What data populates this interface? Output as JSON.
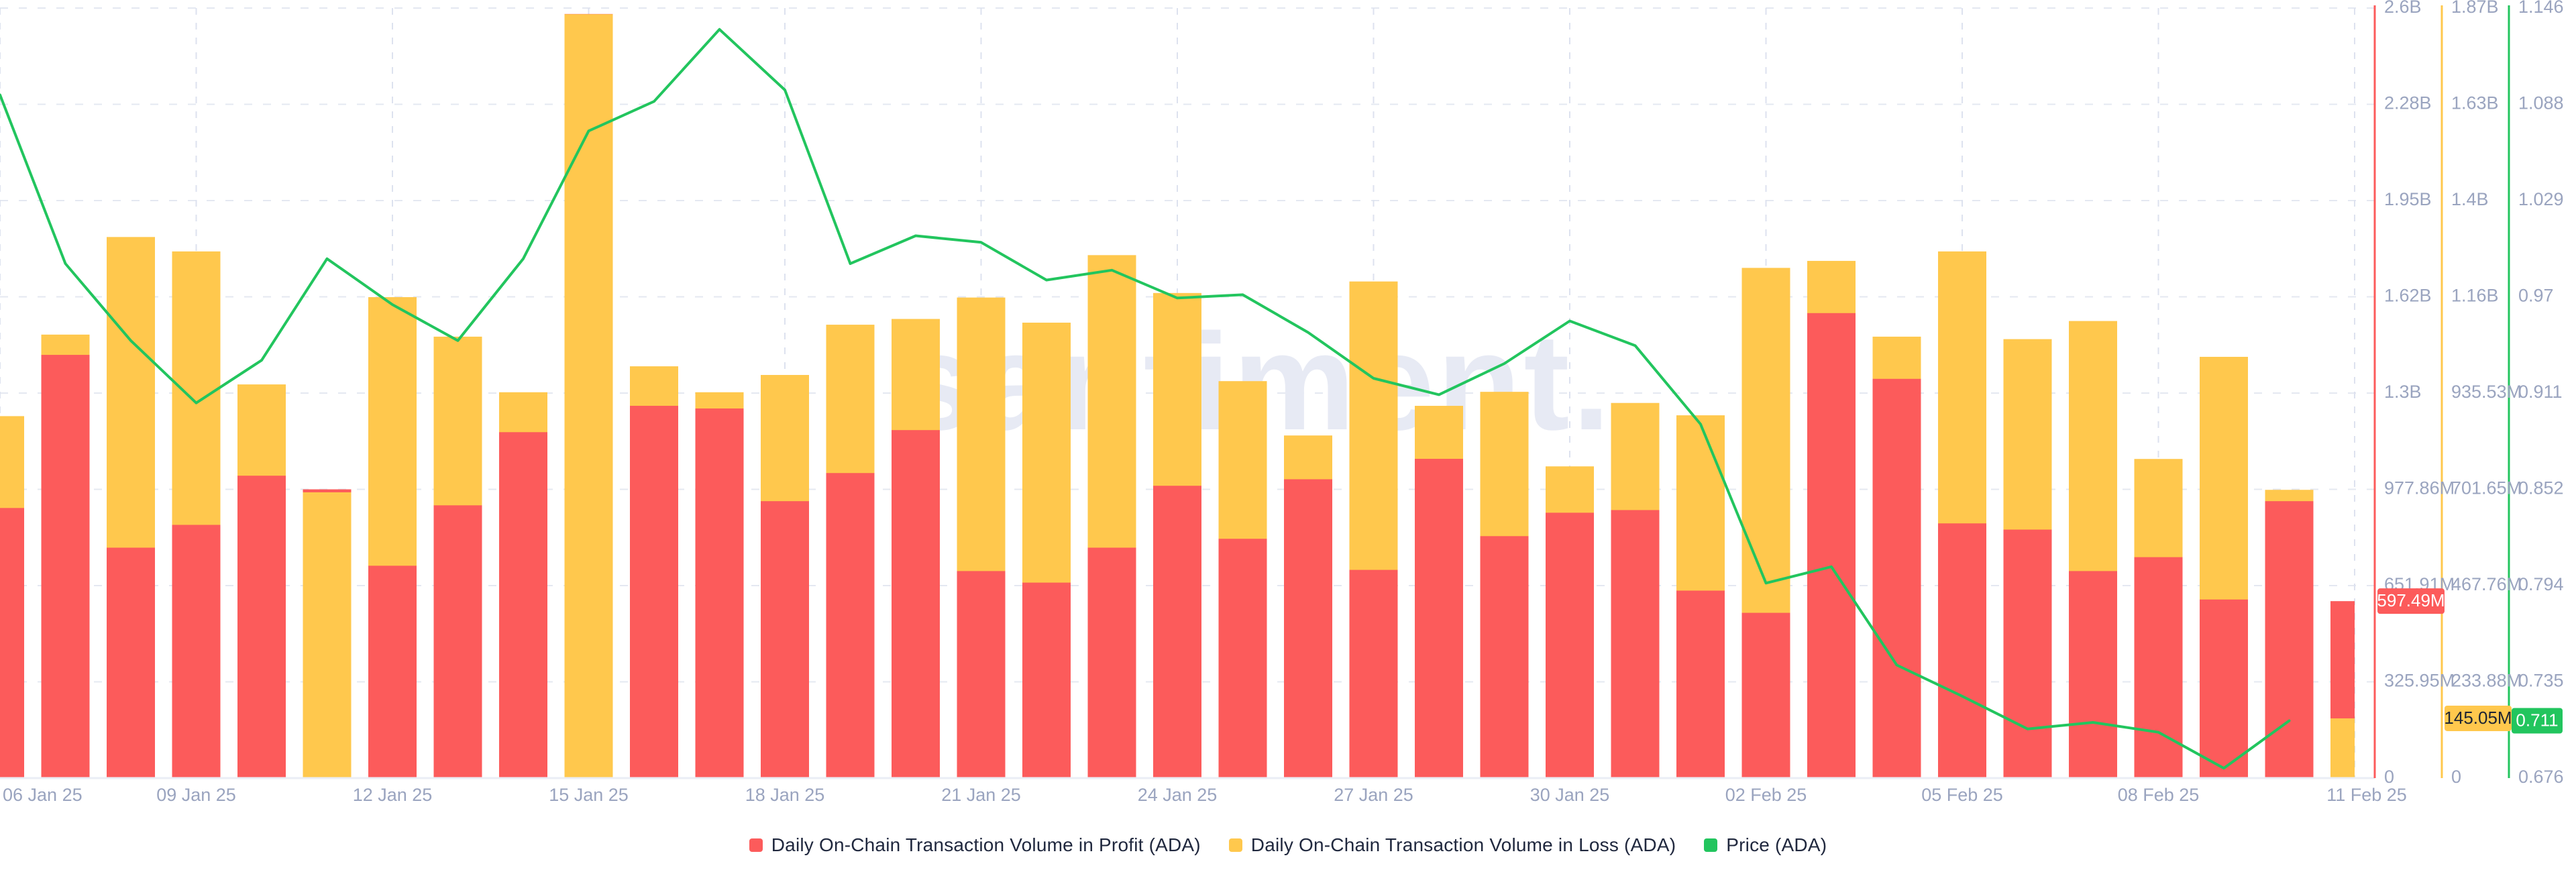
{
  "watermark": "santiment.",
  "legend": {
    "items": [
      {
        "label": "Daily On-Chain Transaction Volume in Profit (ADA)",
        "color": "#FC5B5B"
      },
      {
        "label": "Daily On-Chain Transaction Volume in Loss (ADA)",
        "color": "#FFC84D"
      },
      {
        "label": "Price (ADA)",
        "color": "#22C55E"
      }
    ]
  },
  "badges": {
    "profit_last": "597.49M",
    "loss_last": "145.05M",
    "price_last": "0.711"
  },
  "colors": {
    "profit": "#FC5B5B",
    "loss": "#FFC84D",
    "price": "#22C55E",
    "grid": "#E4E8F1",
    "vgrid": "#DDE2EF",
    "axis_line": "#EAEDF5",
    "axis_text": "#9AA4BF",
    "legend_text": "#20283E",
    "watermark": "#E7EAF4",
    "badge_dark_text": "#1D2433"
  },
  "chart_data": {
    "type": "mixed",
    "subtypes": {
      "profit": "bar-overlay-from-zero",
      "loss": "bar-overlay-from-zero",
      "price": "line"
    },
    "note_render_rule": "Both bars start at zero on separate axes; the bar with the smaller pixel height is drawn in front.",
    "categories": [
      "06 Jan 25",
      "07 Jan 25",
      "08 Jan 25",
      "09 Jan 25",
      "10 Jan 25",
      "11 Jan 25",
      "12 Jan 25",
      "13 Jan 25",
      "14 Jan 25",
      "15 Jan 25",
      "16 Jan 25",
      "17 Jan 25",
      "18 Jan 25",
      "19 Jan 25",
      "20 Jan 25",
      "21 Jan 25",
      "22 Jan 25",
      "23 Jan 25",
      "24 Jan 25",
      "25 Jan 25",
      "26 Jan 25",
      "27 Jan 25",
      "28 Jan 25",
      "29 Jan 25",
      "30 Jan 25",
      "31 Jan 25",
      "01 Feb 25",
      "02 Feb 25",
      "03 Feb 25",
      "04 Feb 25",
      "05 Feb 25",
      "06 Feb 25",
      "07 Feb 25",
      "08 Feb 25",
      "09 Feb 25",
      "10 Feb 25",
      "11 Feb 25"
    ],
    "series": [
      {
        "name": "Daily On-Chain Transaction Volume in Profit (ADA)",
        "unit": "M ADA",
        "axis": "red",
        "values": [
          912,
          1429,
          778,
          855,
          1021,
          975,
          717,
          921,
          1168,
          2580,
          1257,
          1248,
          935,
          1030,
          1175,
          699,
          660,
          778,
          987,
          808,
          1009,
          703,
          1078,
          817,
          896,
          905,
          633,
          558,
          1570,
          1348,
          860,
          839,
          699,
          746,
          603,
          935,
          597.49
        ]
      },
      {
        "name": "Daily On-Chain Transaction Volume in Loss (ADA)",
        "unit": "M ADA",
        "axis": "yellow",
        "values": [
          879,
          1077,
          1314,
          1279,
          956,
          694,
          1168,
          1072,
          937,
          1855,
          1000,
          937,
          979,
          1101,
          1115,
          1167,
          1106,
          1270,
          1178,
          964,
          832,
          1206,
          904,
          938,
          757,
          911,
          881,
          1239,
          1256,
          1072,
          1279,
          1066,
          1110,
          775,
          1023,
          700,
          145.05
        ]
      },
      {
        "name": "Price (ADA)",
        "unit": "USD",
        "axis": "green",
        "values": [
          1.093,
          0.99,
          0.943,
          0.905,
          0.931,
          0.993,
          0.965,
          0.943,
          0.993,
          1.071,
          1.089,
          1.133,
          1.096,
          0.99,
          1.007,
          1.003,
          0.98,
          0.986,
          0.969,
          0.971,
          0.948,
          0.92,
          0.91,
          0.929,
          0.955,
          0.94,
          0.892,
          0.795,
          0.805,
          0.745,
          0.726,
          0.706,
          0.71,
          0.704,
          0.682,
          0.711,
          null
        ]
      }
    ],
    "x_tick_labels": [
      "06 Jan 25",
      "09 Jan 25",
      "12 Jan 25",
      "15 Jan 25",
      "18 Jan 25",
      "21 Jan 25",
      "24 Jan 25",
      "27 Jan 25",
      "30 Jan 25",
      "02 Feb 25",
      "05 Feb 25",
      "08 Feb 25",
      "11 Feb 25"
    ],
    "axes": {
      "red": {
        "max_label_value": 2600000000,
        "ticks": [
          "2.6B",
          "2.28B",
          "1.95B",
          "1.62B",
          "1.3B",
          "977.86M",
          "651.91M",
          "325.95M",
          "0"
        ]
      },
      "yellow": {
        "max_label_value": 1870000000,
        "ticks": [
          "1.87B",
          "1.63B",
          "1.4B",
          "1.16B",
          "935.53M",
          "701.65M",
          "467.76M",
          "233.88M",
          "0"
        ]
      },
      "green": {
        "max_label_value": 1.146,
        "min_label_value": 0.676,
        "ticks": [
          "1.146",
          "1.088",
          "1.029",
          "0.97",
          "0.911",
          "0.852",
          "0.794",
          "0.735",
          "0.676"
        ]
      }
    },
    "grid": "dashed horizontal + dashed vertical at every 3-day tick",
    "legend_position": "bottom-center",
    "title": "",
    "xlabel": "",
    "ylabel": ""
  }
}
